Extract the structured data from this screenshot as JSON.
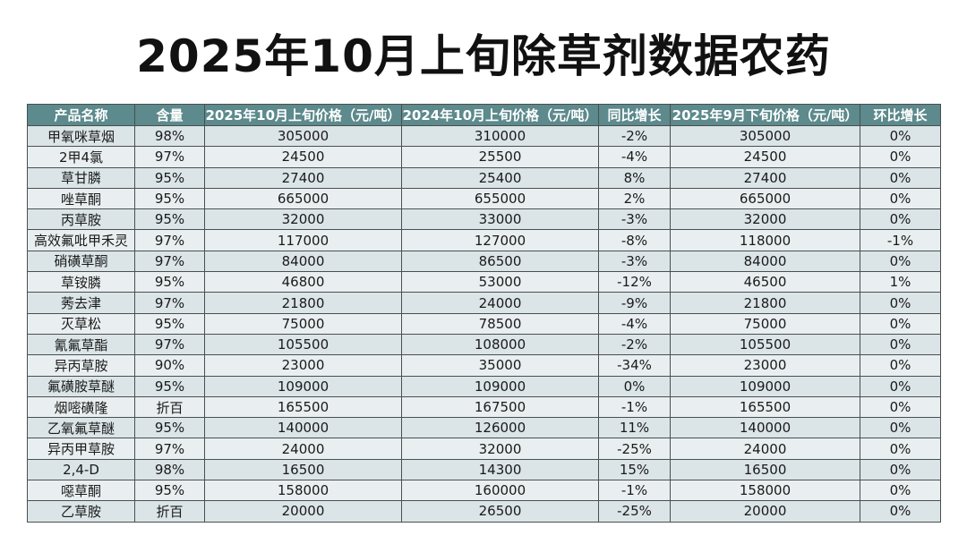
{
  "title": "2025年10月上旬除草剂数据农药",
  "table": {
    "header": [
      "产品名称",
      "含量",
      "2025年10月上旬价格（元/吨）",
      "2024年10月上旬价格（元/吨）",
      "同比增长",
      "2025年9月下旬价格（元/吨）",
      "环比增长"
    ],
    "rows": [
      [
        "甲氧咪草烟",
        "98%",
        "305000",
        "310000",
        "-2%",
        "305000",
        "0%"
      ],
      [
        "2甲4氯",
        "97%",
        "24500",
        "25500",
        "-4%",
        "24500",
        "0%"
      ],
      [
        "草甘膦",
        "95%",
        "27400",
        "25400",
        "8%",
        "27400",
        "0%"
      ],
      [
        "唑草酮",
        "95%",
        "665000",
        "655000",
        "2%",
        "665000",
        "0%"
      ],
      [
        "丙草胺",
        "95%",
        "32000",
        "33000",
        "-3%",
        "32000",
        "0%"
      ],
      [
        "高效氟吡甲禾灵",
        "97%",
        "117000",
        "127000",
        "-8%",
        "118000",
        "-1%"
      ],
      [
        "硝磺草酮",
        "97%",
        "84000",
        "86500",
        "-3%",
        "84000",
        "0%"
      ],
      [
        "草铵膦",
        "95%",
        "46800",
        "53000",
        "-12%",
        "46500",
        "1%"
      ],
      [
        "莠去津",
        "97%",
        "21800",
        "24000",
        "-9%",
        "21800",
        "0%"
      ],
      [
        "灭草松",
        "95%",
        "75000",
        "78500",
        "-4%",
        "75000",
        "0%"
      ],
      [
        "氰氟草酯",
        "97%",
        "105500",
        "108000",
        "-2%",
        "105500",
        "0%"
      ],
      [
        "异丙草胺",
        "90%",
        "23000",
        "35000",
        "-34%",
        "23000",
        "0%"
      ],
      [
        "氟磺胺草醚",
        "95%",
        "109000",
        "109000",
        "0%",
        "109000",
        "0%"
      ],
      [
        "烟嘧磺隆",
        "折百",
        "165500",
        "167500",
        "-1%",
        "165500",
        "0%"
      ],
      [
        "乙氧氟草醚",
        "95%",
        "140000",
        "126000",
        "11%",
        "140000",
        "0%"
      ],
      [
        "异丙甲草胺",
        "97%",
        "24000",
        "32000",
        "-25%",
        "24000",
        "0%"
      ],
      [
        "2,4-D",
        "98%",
        "16500",
        "14300",
        "15%",
        "16500",
        "0%"
      ],
      [
        "噁草酮",
        "95%",
        "158000",
        "160000",
        "-1%",
        "158000",
        "0%"
      ],
      [
        "乙草胺",
        "折百",
        "20000",
        "26500",
        "-25%",
        "20000",
        "0%"
      ]
    ]
  }
}
